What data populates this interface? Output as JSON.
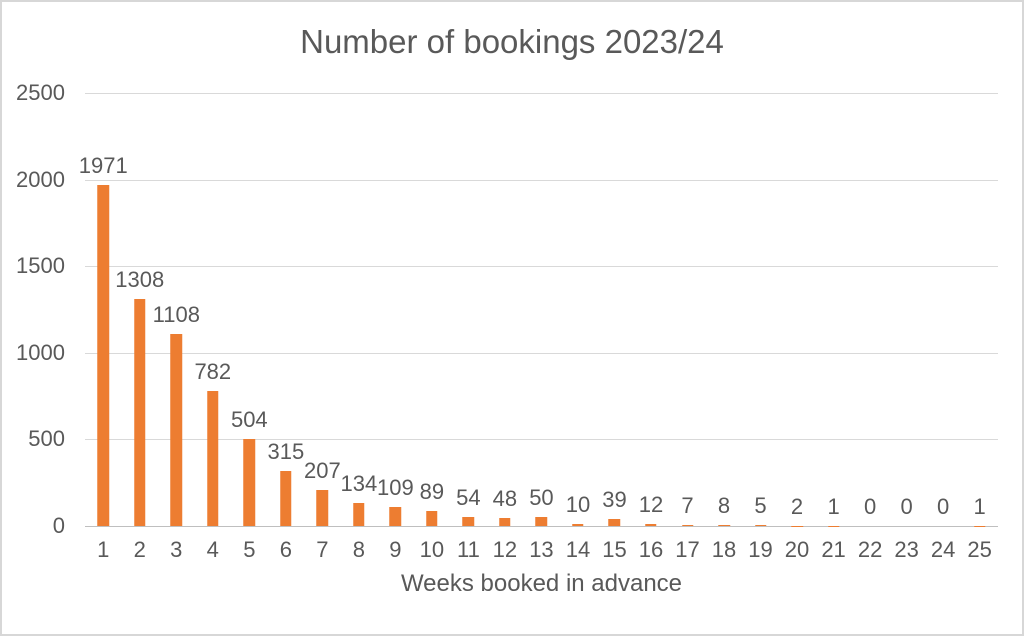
{
  "chart_data": {
    "type": "bar",
    "title": "Number of bookings 2023/24",
    "xlabel": "Weeks booked in advance",
    "ylabel": "",
    "categories": [
      "1",
      "2",
      "3",
      "4",
      "5",
      "6",
      "7",
      "8",
      "9",
      "10",
      "11",
      "12",
      "13",
      "14",
      "15",
      "16",
      "17",
      "18",
      "19",
      "20",
      "21",
      "22",
      "23",
      "24",
      "25"
    ],
    "values": [
      1971,
      1308,
      1108,
      782,
      504,
      315,
      207,
      134,
      109,
      89,
      54,
      48,
      50,
      10,
      39,
      12,
      7,
      8,
      5,
      2,
      1,
      0,
      0,
      0,
      1
    ],
    "data_labels": [
      1971,
      1308,
      1108,
      782,
      504,
      315,
      207,
      134,
      109,
      89,
      54,
      48,
      50,
      10,
      39,
      12,
      7,
      8,
      5,
      2,
      1,
      0,
      0,
      0,
      1
    ],
    "y_ticks": [
      0,
      500,
      1000,
      1500,
      2000,
      2500
    ],
    "ylim": [
      0,
      2500
    ],
    "grid": true,
    "legend": "none",
    "colors": {
      "bar": "#ED7D31",
      "text": "#595959",
      "gridline": "#D9D9D9",
      "axis_line": "#BFBFBF",
      "frame_border": "#D7D7D7",
      "background": "#FFFFFF"
    }
  }
}
